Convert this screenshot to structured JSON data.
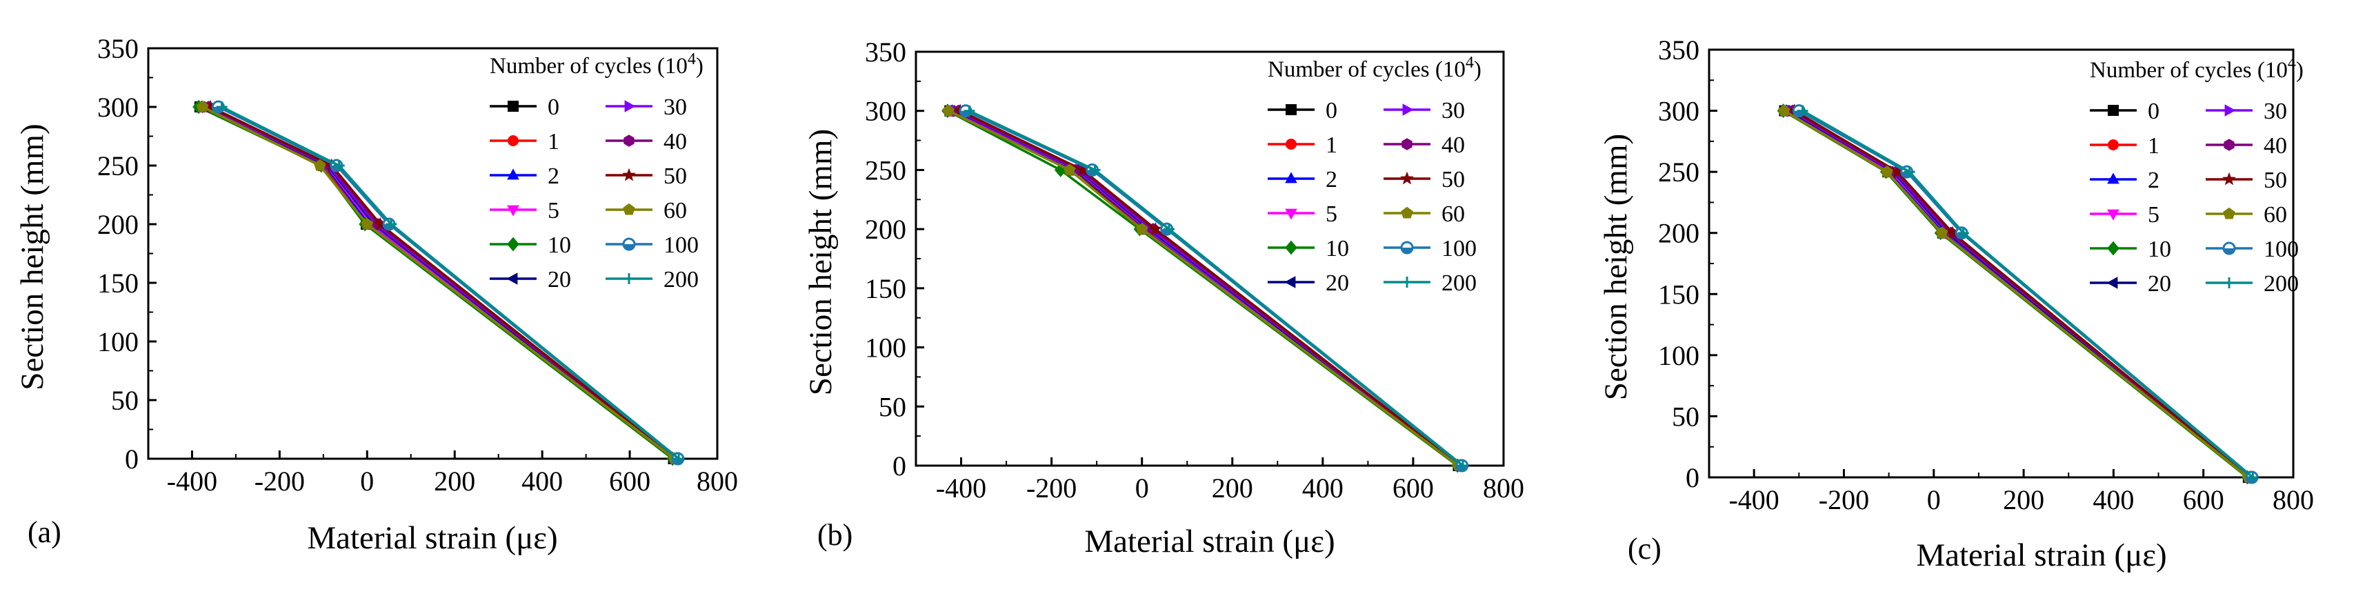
{
  "chart_data": [
    {
      "type": "line",
      "panel_label": "(a)",
      "xlabel": "Material strain (με)",
      "ylabel": "Section height (mm)",
      "xlim": [
        -500,
        800
      ],
      "ylim": [
        0,
        350
      ],
      "xticks": [
        -400,
        -200,
        0,
        200,
        400,
        600,
        800
      ],
      "yticks": [
        0,
        50,
        100,
        150,
        200,
        250,
        300,
        350
      ],
      "legend_title": "Number of cycles",
      "legend_title_unit": "(10",
      "legend_title_exp": "4",
      "legend_title_close": ")",
      "y": [
        300,
        250,
        200,
        0
      ],
      "series": [
        {
          "name": "0",
          "color": "#000000",
          "marker": "square",
          "x": [
            -382,
            -100,
            -2,
            700
          ]
        },
        {
          "name": "1",
          "color": "#ff0000",
          "marker": "circle",
          "x": [
            -380,
            -98,
            0,
            702
          ]
        },
        {
          "name": "2",
          "color": "#0000ff",
          "marker": "triangle-up",
          "x": [
            -378,
            -95,
            5,
            703
          ]
        },
        {
          "name": "5",
          "color": "#ff00ff",
          "marker": "triangle-down",
          "x": [
            -376,
            -92,
            10,
            704
          ]
        },
        {
          "name": "10",
          "color": "#008000",
          "marker": "diamond",
          "x": [
            -385,
            -105,
            -5,
            698
          ]
        },
        {
          "name": "20",
          "color": "#000080",
          "marker": "triangle-left",
          "x": [
            -372,
            -90,
            15,
            705
          ]
        },
        {
          "name": "30",
          "color": "#8000ff",
          "marker": "triangle-right",
          "x": [
            -368,
            -87,
            20,
            706
          ]
        },
        {
          "name": "40",
          "color": "#800080",
          "marker": "hexagon",
          "x": [
            -362,
            -84,
            25,
            706
          ]
        },
        {
          "name": "50",
          "color": "#800000",
          "marker": "star",
          "x": [
            -358,
            -81,
            30,
            707
          ]
        },
        {
          "name": "60",
          "color": "#808000",
          "marker": "pentagon",
          "x": [
            -376,
            -108,
            0,
            702
          ]
        },
        {
          "name": "100",
          "color": "#1f77b4",
          "marker": "half-circle",
          "x": [
            -340,
            -70,
            50,
            710
          ]
        },
        {
          "name": "200",
          "color": "#008b8b",
          "marker": "plus",
          "x": [
            -332,
            -64,
            55,
            712
          ]
        }
      ]
    },
    {
      "type": "line",
      "panel_label": "(b)",
      "xlabel": "Material strain (με)",
      "ylabel": "Section height (mm)",
      "xlim": [
        -500,
        800
      ],
      "ylim": [
        0,
        350
      ],
      "xticks": [
        -400,
        -200,
        0,
        200,
        400,
        600,
        800
      ],
      "yticks": [
        0,
        50,
        100,
        150,
        200,
        250,
        300,
        350
      ],
      "legend_title": "Number of cycles",
      "legend_title_unit": "(10",
      "legend_title_exp": "4",
      "legend_title_close": ")",
      "y": [
        300,
        250,
        200,
        0
      ],
      "series": [
        {
          "name": "0",
          "color": "#000000",
          "marker": "square",
          "x": [
            -425,
            -150,
            5,
            700
          ]
        },
        {
          "name": "1",
          "color": "#ff0000",
          "marker": "circle",
          "x": [
            -422,
            -148,
            8,
            701
          ]
        },
        {
          "name": "2",
          "color": "#0000ff",
          "marker": "triangle-up",
          "x": [
            -420,
            -146,
            10,
            702
          ]
        },
        {
          "name": "5",
          "color": "#ff00ff",
          "marker": "triangle-down",
          "x": [
            -418,
            -143,
            12,
            702
          ]
        },
        {
          "name": "10",
          "color": "#008000",
          "marker": "diamond",
          "x": [
            -430,
            -180,
            -5,
            698
          ]
        },
        {
          "name": "20",
          "color": "#000080",
          "marker": "triangle-left",
          "x": [
            -414,
            -140,
            15,
            703
          ]
        },
        {
          "name": "30",
          "color": "#8000ff",
          "marker": "triangle-right",
          "x": [
            -410,
            -137,
            20,
            704
          ]
        },
        {
          "name": "40",
          "color": "#800080",
          "marker": "hexagon",
          "x": [
            -406,
            -134,
            25,
            704
          ]
        },
        {
          "name": "50",
          "color": "#800000",
          "marker": "star",
          "x": [
            -402,
            -131,
            30,
            705
          ]
        },
        {
          "name": "60",
          "color": "#808000",
          "marker": "pentagon",
          "x": [
            -428,
            -160,
            0,
            700
          ]
        },
        {
          "name": "100",
          "color": "#1f77b4",
          "marker": "half-circle",
          "x": [
            -390,
            -110,
            55,
            708
          ]
        },
        {
          "name": "200",
          "color": "#008b8b",
          "marker": "plus",
          "x": [
            -382,
            -104,
            60,
            710
          ]
        }
      ]
    },
    {
      "type": "line",
      "panel_label": "(c)",
      "xlabel": "Material strain (με)",
      "ylabel": "Section height (mm)",
      "xlim": [
        -500,
        800
      ],
      "ylim": [
        0,
        350
      ],
      "xticks": [
        -400,
        -200,
        0,
        200,
        400,
        600,
        800
      ],
      "yticks": [
        0,
        50,
        100,
        150,
        200,
        250,
        300,
        350
      ],
      "legend_title": "Number of cycles",
      "legend_title_unit": "(10",
      "legend_title_exp": "4",
      "legend_title_close": ")",
      "y": [
        300,
        250,
        200,
        0
      ],
      "series": [
        {
          "name": "0",
          "color": "#000000",
          "marker": "square",
          "x": [
            -332,
            -102,
            20,
            700
          ]
        },
        {
          "name": "1",
          "color": "#ff0000",
          "marker": "circle",
          "x": [
            -330,
            -100,
            22,
            701
          ]
        },
        {
          "name": "2",
          "color": "#0000ff",
          "marker": "triangle-up",
          "x": [
            -328,
            -97,
            25,
            702
          ]
        },
        {
          "name": "5",
          "color": "#ff00ff",
          "marker": "triangle-down",
          "x": [
            -326,
            -94,
            28,
            702
          ]
        },
        {
          "name": "10",
          "color": "#008000",
          "marker": "diamond",
          "x": [
            -335,
            -106,
            15,
            698
          ]
        },
        {
          "name": "20",
          "color": "#000080",
          "marker": "triangle-left",
          "x": [
            -322,
            -90,
            30,
            703
          ]
        },
        {
          "name": "30",
          "color": "#8000ff",
          "marker": "triangle-right",
          "x": [
            -318,
            -87,
            35,
            704
          ]
        },
        {
          "name": "40",
          "color": "#800080",
          "marker": "hexagon",
          "x": [
            -314,
            -84,
            38,
            704
          ]
        },
        {
          "name": "50",
          "color": "#800000",
          "marker": "star",
          "x": [
            -310,
            -81,
            42,
            705
          ]
        },
        {
          "name": "60",
          "color": "#808000",
          "marker": "pentagon",
          "x": [
            -333,
            -104,
            18,
            700
          ]
        },
        {
          "name": "100",
          "color": "#1f77b4",
          "marker": "half-circle",
          "x": [
            -300,
            -60,
            62,
            708
          ]
        },
        {
          "name": "200",
          "color": "#008b8b",
          "marker": "plus",
          "x": [
            -292,
            -54,
            66,
            710
          ]
        }
      ]
    }
  ]
}
